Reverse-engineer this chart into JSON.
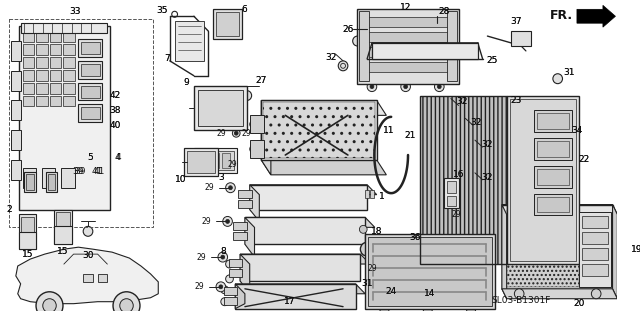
{
  "fig_width": 6.4,
  "fig_height": 3.12,
  "dpi": 100,
  "bg_color": "#ffffff",
  "diagram_code": "SL03-B1301F",
  "lc": "#222222",
  "tc": "#111111",
  "fs": 6.5
}
